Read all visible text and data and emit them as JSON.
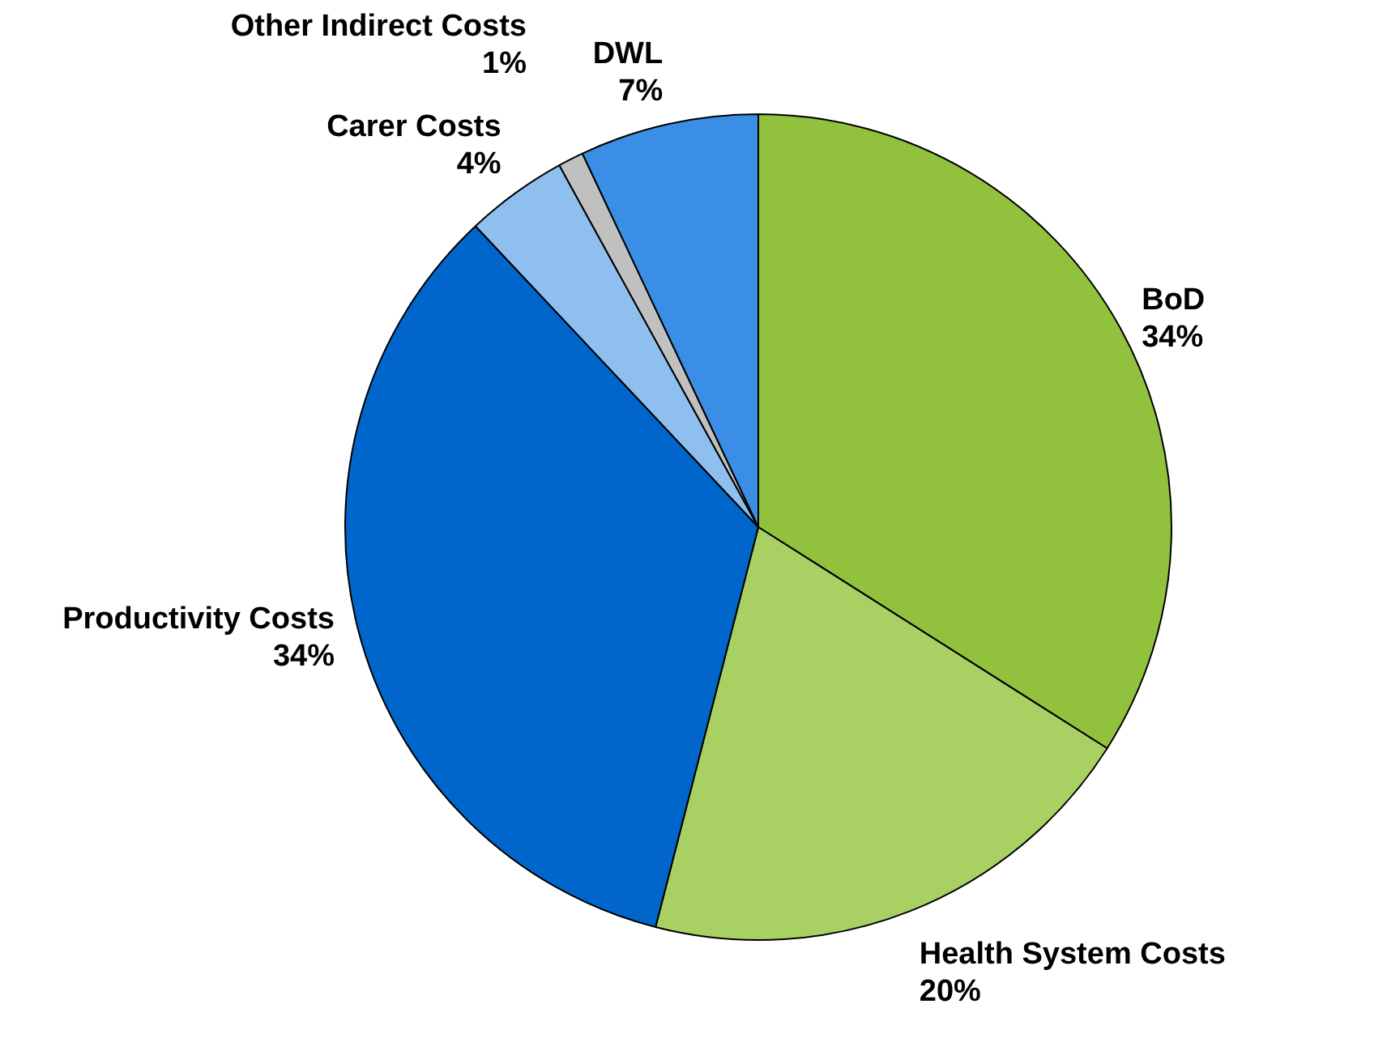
{
  "chart_data": {
    "type": "pie",
    "categories": [
      "BoD",
      "Health System Costs",
      "Productivity Costs",
      "Carer Costs",
      "Other Indirect Costs",
      "DWL"
    ],
    "values": [
      34,
      20,
      34,
      4,
      1,
      7
    ],
    "value_labels": [
      "34%",
      "20%",
      "34%",
      "4%",
      "1%",
      "7%"
    ],
    "colors": [
      "#92c13e",
      "#a9d063",
      "#0066cc",
      "#8fbfef",
      "#c0c0c0",
      "#3a8ee6"
    ],
    "legend": false
  }
}
